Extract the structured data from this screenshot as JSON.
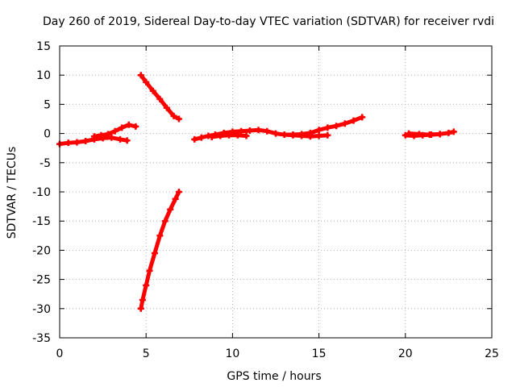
{
  "chart_data": {
    "type": "scatter",
    "title": "Day 260 of 2019, Sidereal Day-to-day VTEC variation (SDTVAR) for receiver rvdi",
    "xlabel": "GPS time / hours",
    "ylabel": "SDTVAR / TECUs",
    "xlim": [
      0,
      25
    ],
    "ylim": [
      -35,
      15
    ],
    "xticks": [
      0,
      5,
      10,
      15,
      20,
      25
    ],
    "yticks": [
      15,
      10,
      5,
      0,
      -5,
      -10,
      -15,
      -20,
      -25,
      -30,
      -35
    ],
    "grid": true,
    "marker_color": "#ff0000",
    "series": [
      {
        "segments": [
          {
            "x": [
              0.0,
              0.5,
              1.0,
              1.5,
              2.0,
              2.5,
              3.0,
              3.5,
              3.9
            ],
            "y": [
              -1.8,
              -1.6,
              -1.5,
              -1.3,
              -1.0,
              -0.8,
              -0.7,
              -1.0,
              -1.2
            ]
          },
          {
            "x": [
              2.0,
              2.4,
              2.8,
              3.2,
              3.6,
              4.0,
              4.4
            ],
            "y": [
              -0.5,
              -0.3,
              -0.1,
              0.4,
              1.0,
              1.5,
              1.2
            ]
          },
          {
            "x": [
              4.7,
              5.0,
              5.4,
              5.8,
              6.2,
              6.6,
              6.9
            ],
            "y": [
              10.0,
              8.8,
              7.3,
              5.9,
              4.4,
              3.0,
              2.5
            ]
          },
          {
            "x": [
              4.7,
              4.8,
              5.0,
              5.2,
              5.5,
              5.8,
              6.1,
              6.4,
              6.7,
              6.9
            ],
            "y": [
              -30.0,
              -28.5,
              -26.0,
              -23.5,
              -20.5,
              -17.5,
              -15.0,
              -13.0,
              -11.2,
              -10.0
            ]
          },
          {
            "x": [
              7.8,
              8.2,
              8.6,
              9.0,
              9.5,
              10.0,
              10.5,
              11.0,
              11.5,
              12.0,
              12.5,
              13.0,
              13.5,
              14.0,
              14.5,
              15.0,
              15.5,
              16.0,
              16.5,
              17.0,
              17.5
            ],
            "y": [
              -1.0,
              -0.7,
              -0.4,
              -0.2,
              0.1,
              0.3,
              0.4,
              0.5,
              0.6,
              0.4,
              0.0,
              -0.2,
              -0.2,
              -0.1,
              0.1,
              0.6,
              1.0,
              1.3,
              1.7,
              2.2,
              2.8
            ]
          },
          {
            "x": [
              8.8,
              9.3,
              9.8,
              10.3,
              10.8
            ],
            "y": [
              -0.6,
              -0.4,
              -0.3,
              -0.3,
              -0.4
            ]
          },
          {
            "x": [
              13.0,
              13.5,
              14.0,
              14.5,
              15.0,
              15.5
            ],
            "y": [
              -0.2,
              -0.3,
              -0.4,
              -0.5,
              -0.4,
              -0.3
            ]
          },
          {
            "x": [
              20.0,
              20.5,
              21.0,
              21.5,
              22.0,
              22.5,
              22.8
            ],
            "y": [
              -0.3,
              -0.4,
              -0.3,
              -0.2,
              -0.1,
              0.1,
              0.3
            ]
          },
          {
            "x": [
              20.2,
              20.8,
              21.4,
              22.0
            ],
            "y": [
              0.0,
              -0.1,
              -0.2,
              -0.1
            ]
          }
        ]
      }
    ]
  }
}
